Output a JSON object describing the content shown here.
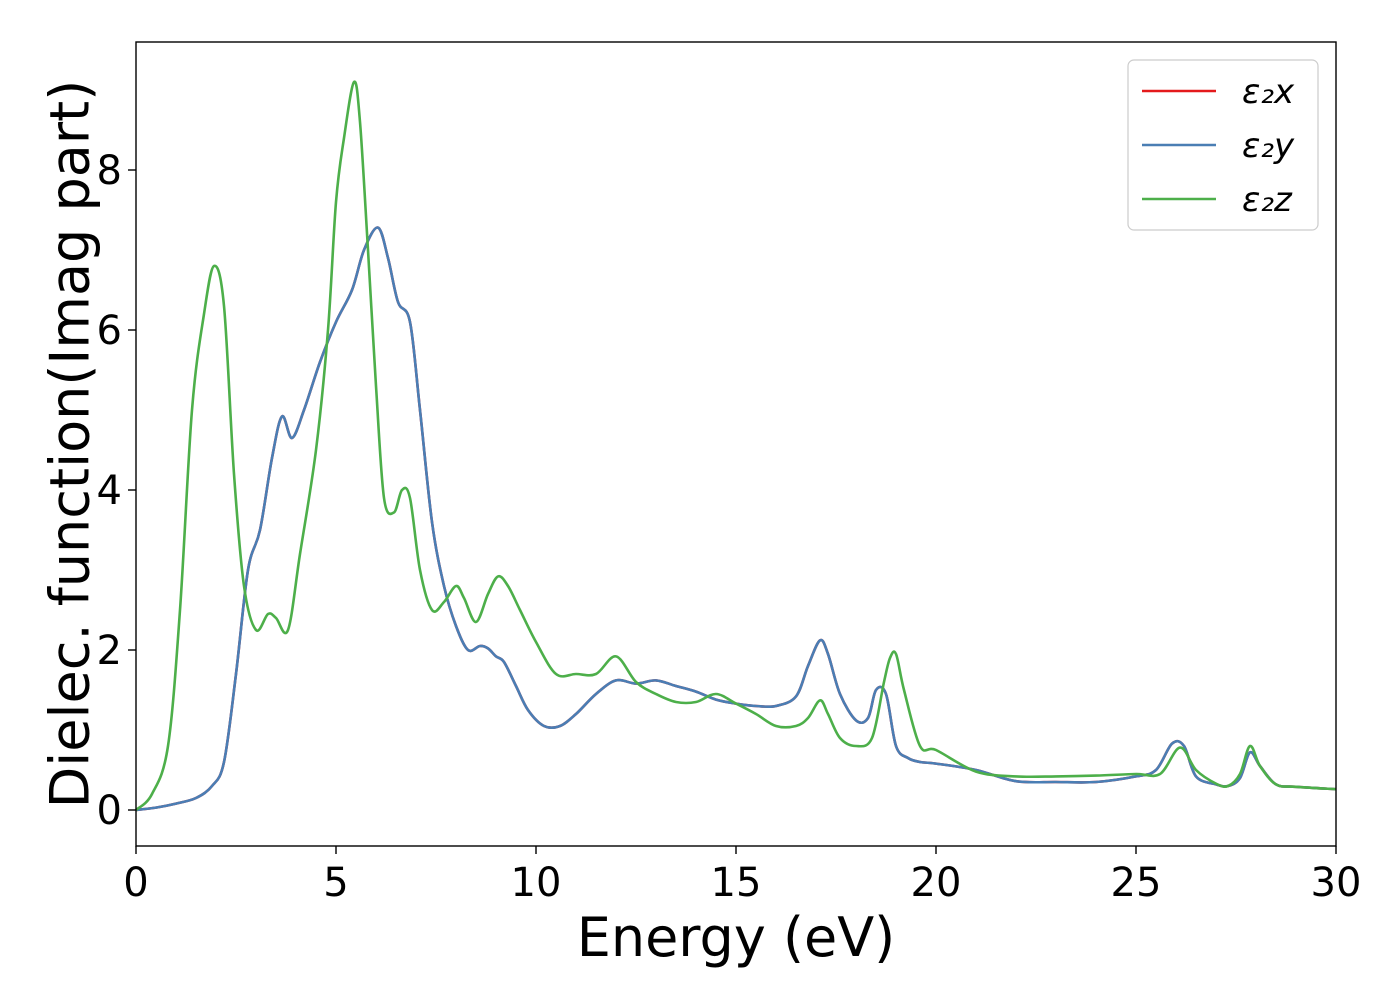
{
  "chart_data": {
    "type": "line",
    "xlabel": "Energy (eV)",
    "ylabel": "Dielec. function(Imag part)",
    "xlim": [
      0,
      30
    ],
    "ylim": [
      -0.45,
      9.6
    ],
    "xticks": [
      0,
      5,
      10,
      15,
      20,
      25,
      30
    ],
    "yticks": [
      0,
      2,
      4,
      6,
      8
    ],
    "grid": false,
    "legend_position": "top-right",
    "series": [
      {
        "name": "ε₂x",
        "color": "#e41a1c",
        "x": [
          0,
          0.5,
          1.0,
          1.5,
          1.9,
          2.2,
          2.5,
          2.8,
          3.1,
          3.4,
          3.65,
          3.9,
          4.2,
          4.6,
          5.0,
          5.4,
          5.7,
          6.05,
          6.3,
          6.55,
          6.85,
          7.1,
          7.4,
          7.7,
          8.0,
          8.3,
          8.6,
          8.8,
          9.0,
          9.2,
          9.5,
          9.8,
          10.2,
          10.6,
          11.0,
          11.5,
          12.0,
          12.5,
          13.0,
          13.5,
          14.0,
          14.5,
          15.0,
          15.5,
          16.0,
          16.5,
          16.8,
          17.1,
          17.3,
          17.6,
          18.0,
          18.3,
          18.5,
          18.75,
          19.0,
          19.3,
          19.6,
          20.0,
          21.0,
          22.0,
          23.0,
          24.0,
          25.0,
          25.5,
          25.9,
          26.2,
          26.5,
          27.0,
          27.3,
          27.6,
          27.85,
          28.1,
          28.5,
          29.0,
          30.0
        ],
        "values": [
          0.0,
          0.03,
          0.08,
          0.15,
          0.3,
          0.6,
          1.7,
          3.0,
          3.5,
          4.4,
          4.92,
          4.65,
          5.0,
          5.6,
          6.1,
          6.5,
          7.0,
          7.28,
          6.9,
          6.35,
          6.1,
          5.0,
          3.6,
          2.8,
          2.3,
          2.0,
          2.05,
          2.02,
          1.92,
          1.85,
          1.55,
          1.25,
          1.05,
          1.05,
          1.2,
          1.45,
          1.62,
          1.58,
          1.62,
          1.55,
          1.48,
          1.38,
          1.33,
          1.3,
          1.3,
          1.42,
          1.8,
          2.12,
          1.95,
          1.45,
          1.12,
          1.15,
          1.5,
          1.45,
          0.8,
          0.65,
          0.6,
          0.58,
          0.5,
          0.36,
          0.35,
          0.35,
          0.42,
          0.5,
          0.83,
          0.8,
          0.42,
          0.32,
          0.3,
          0.4,
          0.72,
          0.55,
          0.32,
          0.29,
          0.26
        ]
      },
      {
        "name": "ε₂y",
        "color": "#4a7eb4",
        "x": [
          0,
          0.5,
          1.0,
          1.5,
          1.9,
          2.2,
          2.5,
          2.8,
          3.1,
          3.4,
          3.65,
          3.9,
          4.2,
          4.6,
          5.0,
          5.4,
          5.7,
          6.05,
          6.3,
          6.55,
          6.85,
          7.1,
          7.4,
          7.7,
          8.0,
          8.3,
          8.6,
          8.8,
          9.0,
          9.2,
          9.5,
          9.8,
          10.2,
          10.6,
          11.0,
          11.5,
          12.0,
          12.5,
          13.0,
          13.5,
          14.0,
          14.5,
          15.0,
          15.5,
          16.0,
          16.5,
          16.8,
          17.1,
          17.3,
          17.6,
          18.0,
          18.3,
          18.5,
          18.75,
          19.0,
          19.3,
          19.6,
          20.0,
          21.0,
          22.0,
          23.0,
          24.0,
          25.0,
          25.5,
          25.9,
          26.2,
          26.5,
          27.0,
          27.3,
          27.6,
          27.85,
          28.1,
          28.5,
          29.0,
          30.0
        ],
        "values": [
          0.0,
          0.03,
          0.08,
          0.15,
          0.3,
          0.6,
          1.7,
          3.0,
          3.5,
          4.4,
          4.92,
          4.65,
          5.0,
          5.6,
          6.1,
          6.5,
          7.0,
          7.28,
          6.9,
          6.35,
          6.1,
          5.0,
          3.6,
          2.8,
          2.3,
          2.0,
          2.05,
          2.02,
          1.92,
          1.85,
          1.55,
          1.25,
          1.05,
          1.05,
          1.2,
          1.45,
          1.62,
          1.58,
          1.62,
          1.55,
          1.48,
          1.38,
          1.33,
          1.3,
          1.3,
          1.42,
          1.8,
          2.12,
          1.95,
          1.45,
          1.12,
          1.15,
          1.5,
          1.45,
          0.8,
          0.65,
          0.6,
          0.58,
          0.5,
          0.36,
          0.35,
          0.35,
          0.42,
          0.5,
          0.83,
          0.8,
          0.42,
          0.32,
          0.3,
          0.4,
          0.72,
          0.55,
          0.32,
          0.29,
          0.26
        ]
      },
      {
        "name": "ε₂z",
        "color": "#4daf4a",
        "x": [
          0,
          0.4,
          0.8,
          1.1,
          1.4,
          1.7,
          1.95,
          2.2,
          2.45,
          2.7,
          3.0,
          3.3,
          3.5,
          3.8,
          4.1,
          4.5,
          4.8,
          5.0,
          5.2,
          5.45,
          5.6,
          5.8,
          6.0,
          6.2,
          6.45,
          6.65,
          6.85,
          7.1,
          7.4,
          7.7,
          8.0,
          8.2,
          8.5,
          8.8,
          9.05,
          9.3,
          9.6,
          10.0,
          10.5,
          11.0,
          11.5,
          12.0,
          12.5,
          13.0,
          13.5,
          14.0,
          14.5,
          15.0,
          15.5,
          16.0,
          16.5,
          16.8,
          17.1,
          17.3,
          17.6,
          18.0,
          18.4,
          18.7,
          18.85,
          19.0,
          19.2,
          19.6,
          20.0,
          21.0,
          22.0,
          23.0,
          24.0,
          25.0,
          25.6,
          26.1,
          26.5,
          27.0,
          27.3,
          27.6,
          27.85,
          28.1,
          28.5,
          29.0,
          30.0
        ],
        "values": [
          0.0,
          0.2,
          0.8,
          2.5,
          5.0,
          6.2,
          6.8,
          6.3,
          4.2,
          2.8,
          2.25,
          2.45,
          2.4,
          2.25,
          3.2,
          4.5,
          6.0,
          7.6,
          8.4,
          9.1,
          8.6,
          7.0,
          5.3,
          3.9,
          3.72,
          4.0,
          3.9,
          3.0,
          2.5,
          2.6,
          2.8,
          2.65,
          2.35,
          2.7,
          2.92,
          2.8,
          2.5,
          2.1,
          1.7,
          1.7,
          1.7,
          1.92,
          1.6,
          1.45,
          1.35,
          1.35,
          1.45,
          1.33,
          1.2,
          1.05,
          1.05,
          1.15,
          1.37,
          1.2,
          0.9,
          0.8,
          0.9,
          1.6,
          1.9,
          1.95,
          1.5,
          0.8,
          0.75,
          0.48,
          0.42,
          0.42,
          0.43,
          0.45,
          0.45,
          0.78,
          0.5,
          0.33,
          0.3,
          0.45,
          0.8,
          0.55,
          0.32,
          0.29,
          0.26
        ]
      }
    ]
  }
}
